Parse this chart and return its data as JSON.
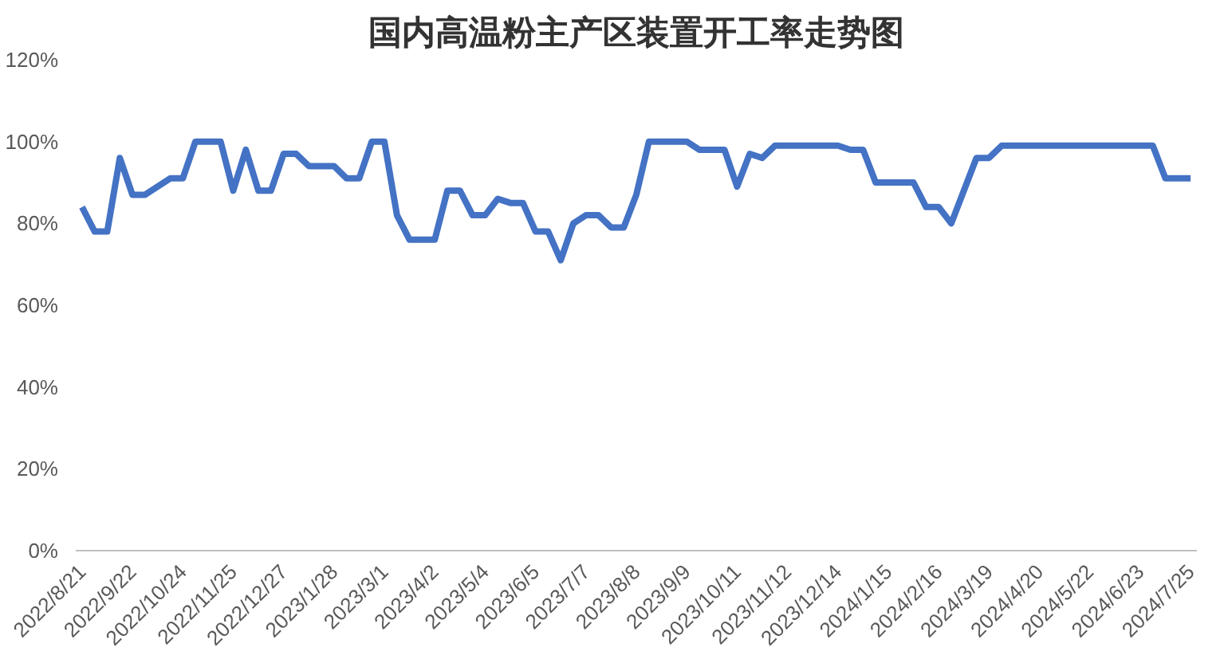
{
  "chart_data": {
    "type": "line",
    "title": "国内高温粉主产区装置开工率走势图",
    "categories": [
      "2022/8/21",
      null,
      null,
      null,
      "2022/9/22",
      null,
      null,
      null,
      "2022/10/24",
      null,
      null,
      null,
      "2022/11/25",
      null,
      null,
      null,
      "2022/12/27",
      null,
      null,
      null,
      "2023/1/28",
      null,
      null,
      null,
      "2023/3/1",
      null,
      null,
      null,
      "2023/4/2",
      null,
      null,
      null,
      "2023/5/4",
      null,
      null,
      null,
      "2023/6/5",
      null,
      null,
      null,
      "2023/7/7",
      null,
      null,
      null,
      "2023/8/8",
      null,
      null,
      null,
      "2023/9/9",
      null,
      null,
      null,
      "2023/10/11",
      null,
      null,
      null,
      "2023/11/12",
      null,
      null,
      null,
      "2023/12/14",
      null,
      null,
      null,
      "2024/1/15",
      null,
      null,
      null,
      "2024/2/16",
      null,
      null,
      null,
      "2024/3/19",
      null,
      null,
      null,
      "2024/4/20",
      null,
      null,
      null,
      "2024/5/22",
      null,
      null,
      null,
      "2024/6/23",
      null,
      null,
      null,
      "2024/7/25"
    ],
    "series": [
      {
        "color": "#4472c4",
        "values": [
          84,
          78,
          78,
          96,
          87,
          87,
          89,
          91,
          91,
          100,
          100,
          100,
          88,
          98,
          88,
          88,
          97,
          97,
          94,
          94,
          94,
          91,
          91,
          100,
          100,
          82,
          76,
          76,
          76,
          88,
          88,
          82,
          82,
          86,
          85,
          85,
          78,
          78,
          71,
          80,
          82,
          82,
          79,
          79,
          87,
          100,
          100,
          100,
          100,
          98,
          98,
          98,
          89,
          97,
          96,
          99,
          99,
          99,
          99,
          99,
          99,
          98,
          98,
          90,
          90,
          90,
          90,
          84,
          84,
          80,
          88,
          96,
          96,
          99,
          99,
          99,
          99,
          99,
          99,
          99,
          99,
          99,
          99,
          99,
          99,
          99,
          91,
          91,
          91
        ]
      }
    ],
    "ylim": [
      0,
      120
    ],
    "yticks": [
      {
        "value": 0,
        "label": "0%"
      },
      {
        "value": 20,
        "label": "20%"
      },
      {
        "value": 40,
        "label": "40%"
      },
      {
        "value": 60,
        "label": "60%"
      },
      {
        "value": 80,
        "label": "80%"
      },
      {
        "value": 100,
        "label": "100%"
      },
      {
        "value": 120,
        "label": "120%"
      }
    ],
    "grid": false,
    "marker": "none",
    "line_style": "solid"
  }
}
